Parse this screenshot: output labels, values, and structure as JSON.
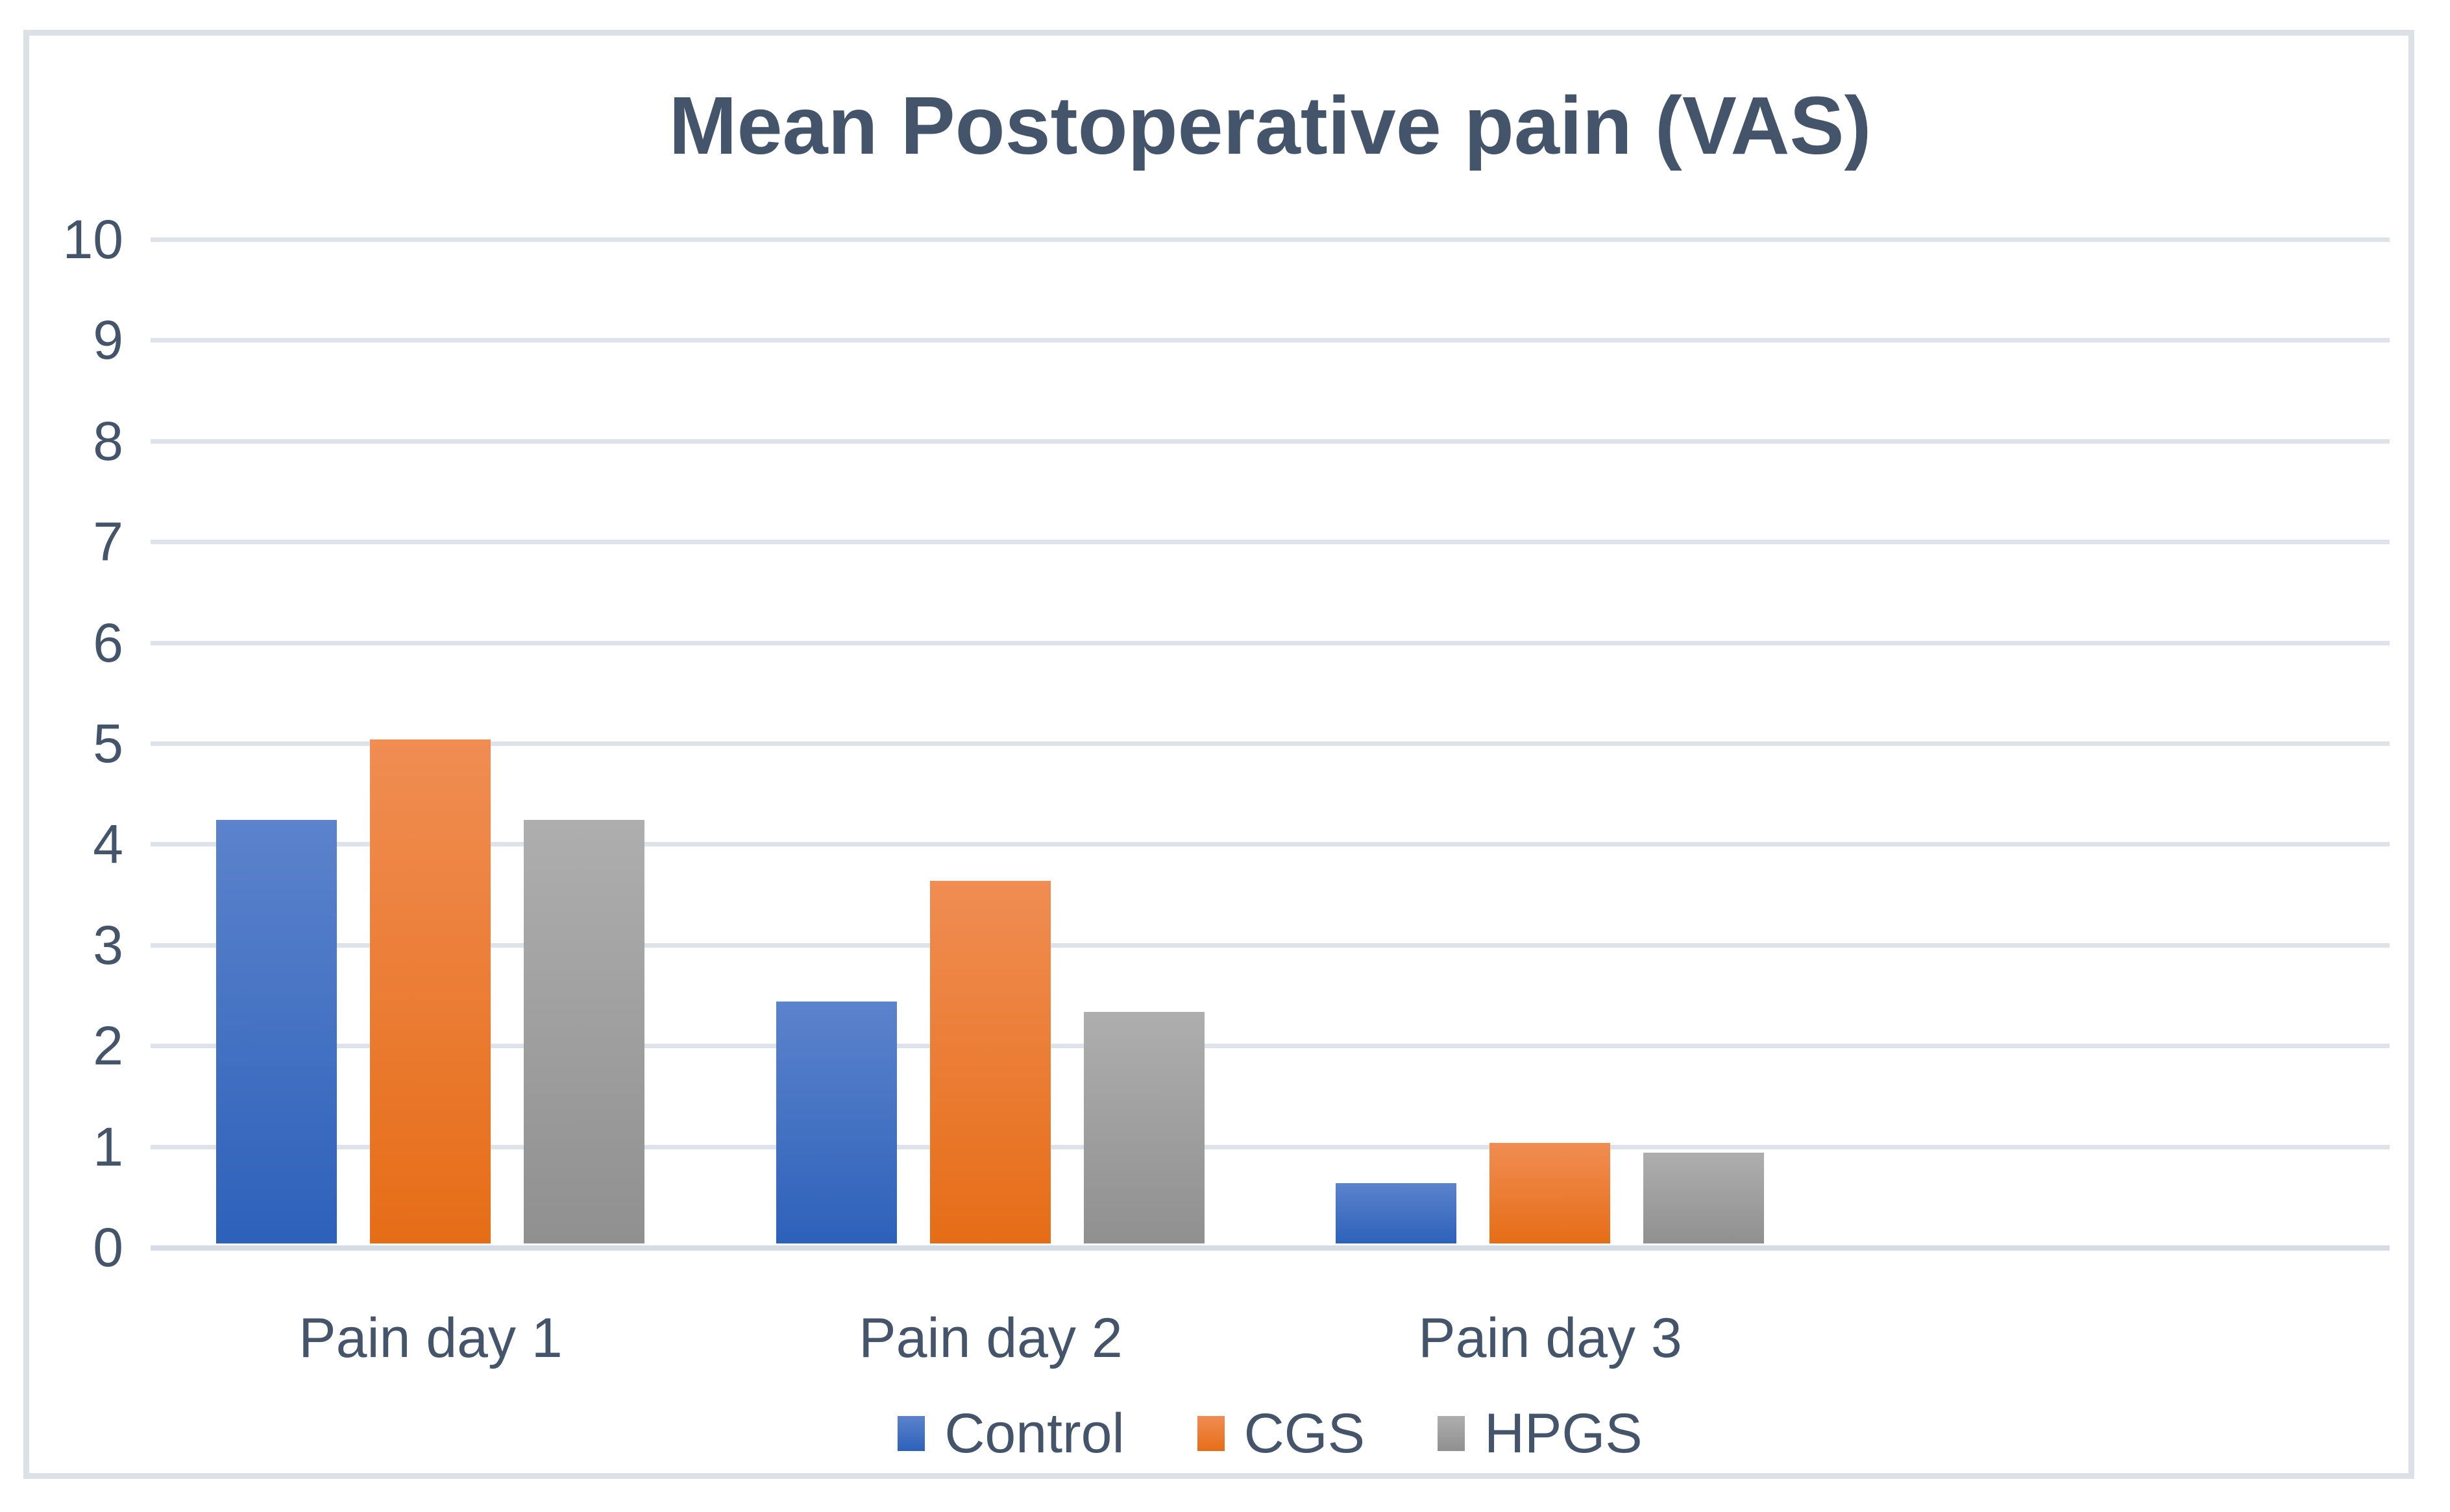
{
  "chart_data": {
    "type": "bar",
    "title": "Mean Postoperative pain (VAS)",
    "categories": [
      "Pain day 1",
      "Pain day 2",
      "Pain day 3"
    ],
    "series": [
      {
        "name": "Control",
        "values": [
          4.2,
          2.4,
          0.6
        ],
        "color_top": "#5c83cc",
        "color_bottom": "#2d61ba"
      },
      {
        "name": "CGS",
        "values": [
          5.0,
          3.6,
          1.0
        ],
        "color_top": "#f08d53",
        "color_bottom": "#e66d17"
      },
      {
        "name": "HPGS",
        "values": [
          4.2,
          2.3,
          0.9
        ],
        "color_top": "#aeaeae",
        "color_bottom": "#909090"
      }
    ],
    "xlabel": "",
    "ylabel": "",
    "ylim": [
      0,
      10
    ],
    "y_tick_step": 1,
    "y_tick_labels": [
      "0",
      "1",
      "2",
      "3",
      "4",
      "5",
      "6",
      "7",
      "8",
      "9",
      "10"
    ],
    "layout": {
      "grid": "horizontal",
      "x_slots": 4,
      "legend_position": "bottom",
      "gridline_color": "#dde2eb",
      "axis_line_color": "#d6dce6",
      "text_color": "#44546a",
      "frame_border_color": "#dce1e8"
    }
  }
}
